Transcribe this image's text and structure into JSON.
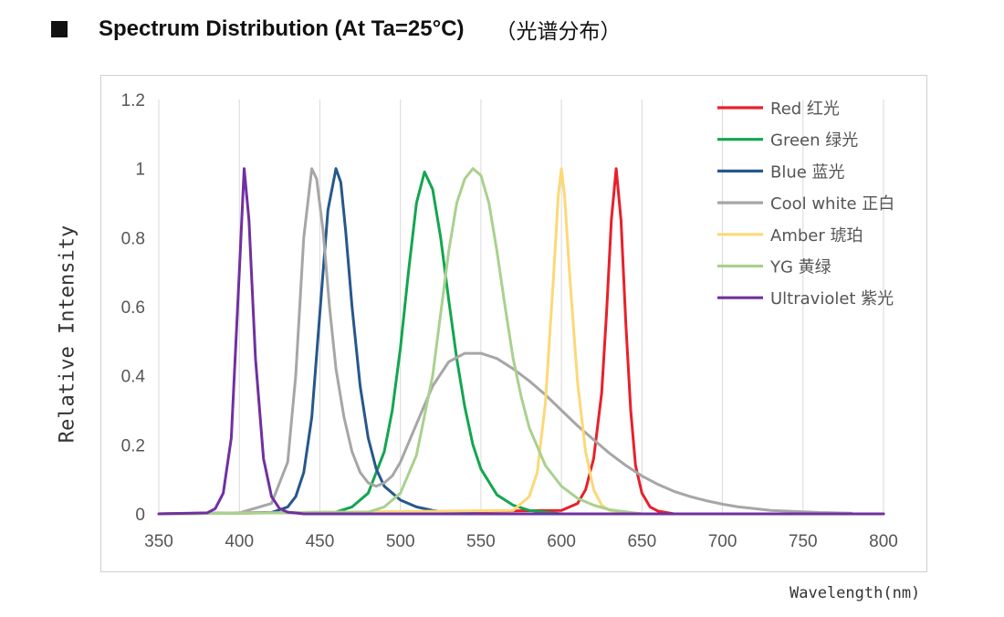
{
  "heading": {
    "title": "Spectrum Distribution (At Ta=25°C)",
    "subtitle": "（光谱分布）"
  },
  "chart_data": {
    "type": "line",
    "title": "Spectrum Distribution (At Ta=25°C)",
    "xlabel": "Wavelength(nm)",
    "ylabel": "Relative Intensity",
    "xlim": [
      350,
      800
    ],
    "ylim": [
      0,
      1.2
    ],
    "xticks": [
      "350",
      "400",
      "450",
      "500",
      "550",
      "600",
      "650",
      "700",
      "750",
      "800"
    ],
    "yticks": [
      "0",
      "0.2",
      "0.4",
      "0.6",
      "0.8",
      "1",
      "1.2"
    ],
    "grid": "vertical",
    "legend_position": "top-right",
    "series": [
      {
        "name": "Red 红光",
        "color": "#e8202a",
        "x": [
          350,
          600,
          610,
          615,
          620,
          625,
          628,
          631,
          634,
          637,
          640,
          643,
          646,
          650,
          655,
          660,
          670,
          800
        ],
        "y": [
          0,
          0.01,
          0.03,
          0.07,
          0.16,
          0.35,
          0.58,
          0.85,
          1.0,
          0.85,
          0.55,
          0.3,
          0.14,
          0.06,
          0.02,
          0.008,
          0,
          0
        ]
      },
      {
        "name": "Green 绿光",
        "color": "#12a64f",
        "x": [
          350,
          460,
          470,
          480,
          490,
          495,
          500,
          505,
          510,
          515,
          520,
          525,
          530,
          535,
          540,
          545,
          550,
          560,
          570,
          580,
          600,
          800
        ],
        "y": [
          0,
          0.005,
          0.02,
          0.06,
          0.18,
          0.3,
          0.48,
          0.7,
          0.9,
          0.99,
          0.94,
          0.8,
          0.62,
          0.45,
          0.31,
          0.2,
          0.13,
          0.055,
          0.025,
          0.01,
          0,
          0
        ]
      },
      {
        "name": "Blue 蓝光",
        "color": "#27578c",
        "x": [
          350,
          420,
          430,
          435,
          440,
          445,
          450,
          455,
          460,
          463,
          466,
          470,
          475,
          480,
          485,
          490,
          500,
          510,
          520,
          530,
          550,
          800
        ],
        "y": [
          0,
          0.004,
          0.02,
          0.05,
          0.12,
          0.28,
          0.58,
          0.88,
          1.0,
          0.96,
          0.82,
          0.6,
          0.37,
          0.22,
          0.13,
          0.08,
          0.04,
          0.02,
          0.01,
          0.004,
          0,
          0
        ]
      },
      {
        "name": "Cool white 正白",
        "color": "#a6a6a6",
        "x": [
          350,
          400,
          420,
          430,
          435,
          440,
          445,
          448,
          452,
          456,
          460,
          465,
          470,
          475,
          480,
          485,
          490,
          495,
          500,
          510,
          520,
          530,
          540,
          550,
          560,
          570,
          580,
          590,
          600,
          610,
          620,
          630,
          640,
          650,
          660,
          670,
          680,
          690,
          700,
          710,
          720,
          730,
          740,
          750,
          760,
          770,
          780
        ],
        "y": [
          0,
          0.003,
          0.03,
          0.15,
          0.4,
          0.8,
          1.0,
          0.97,
          0.82,
          0.6,
          0.42,
          0.28,
          0.18,
          0.12,
          0.09,
          0.08,
          0.09,
          0.11,
          0.15,
          0.26,
          0.37,
          0.44,
          0.465,
          0.465,
          0.45,
          0.42,
          0.385,
          0.345,
          0.3,
          0.255,
          0.215,
          0.175,
          0.14,
          0.11,
          0.085,
          0.065,
          0.05,
          0.038,
          0.028,
          0.02,
          0.015,
          0.01,
          0.008,
          0.006,
          0.004,
          0.003,
          0.002
        ]
      },
      {
        "name": "Amber 琥珀",
        "color": "#fcd878",
        "x": [
          350,
          570,
          580,
          585,
          590,
          595,
          598,
          600,
          602,
          605,
          610,
          615,
          620,
          625,
          630,
          640,
          800
        ],
        "y": [
          0,
          0.01,
          0.05,
          0.12,
          0.32,
          0.68,
          0.92,
          1.0,
          0.92,
          0.7,
          0.38,
          0.18,
          0.07,
          0.025,
          0.01,
          0,
          0
        ]
      },
      {
        "name": "YG 黄绿",
        "color": "#a9d18e",
        "x": [
          350,
          480,
          490,
          500,
          510,
          520,
          525,
          530,
          535,
          540,
          545,
          550,
          555,
          560,
          565,
          570,
          575,
          580,
          590,
          600,
          610,
          620,
          630,
          650,
          800
        ],
        "y": [
          0,
          0.005,
          0.02,
          0.06,
          0.17,
          0.4,
          0.58,
          0.76,
          0.9,
          0.97,
          1.0,
          0.98,
          0.9,
          0.76,
          0.6,
          0.45,
          0.34,
          0.25,
          0.14,
          0.08,
          0.045,
          0.025,
          0.012,
          0,
          0
        ]
      },
      {
        "name": "Ultraviolet 紫光",
        "color": "#7030a0",
        "x": [
          350,
          380,
          385,
          390,
          395,
          400,
          403,
          406,
          410,
          415,
          420,
          425,
          430,
          440,
          450,
          800
        ],
        "y": [
          0,
          0.003,
          0.015,
          0.06,
          0.22,
          0.7,
          1.0,
          0.85,
          0.45,
          0.16,
          0.05,
          0.015,
          0.005,
          0,
          0,
          0
        ]
      }
    ]
  }
}
